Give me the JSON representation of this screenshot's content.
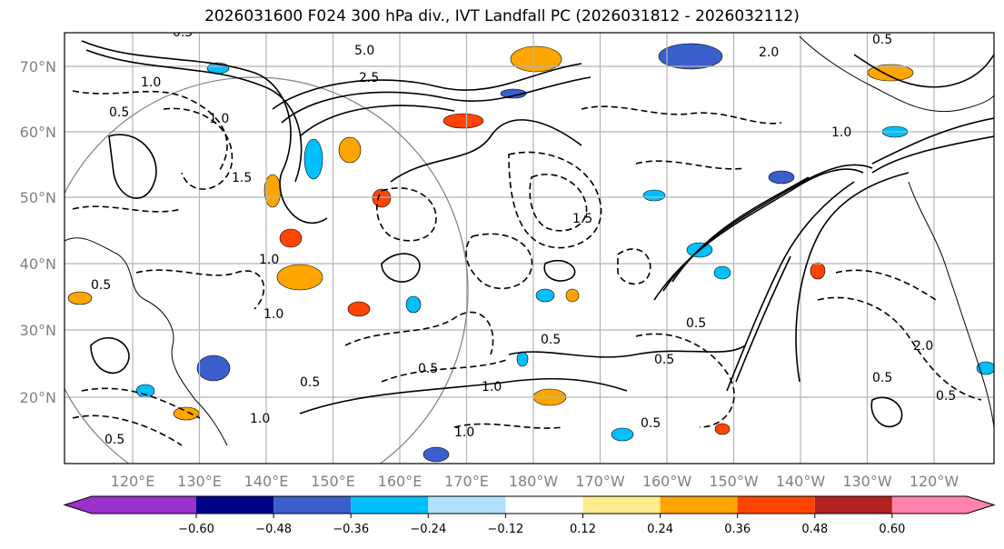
{
  "title": "2026031600 F024 300 hPa div., IVT Landfall PC (2026031812 - 2026032112)",
  "lat_labels": [
    "70°N",
    "60°N",
    "50°N",
    "40°N",
    "30°N",
    "20°N"
  ],
  "lon_labels": [
    "120°E",
    "130°E",
    "140°E",
    "150°E",
    "160°E",
    "170°E",
    "180°W",
    "170°W",
    "160°W",
    "150°W",
    "140°W",
    "130°W",
    "120°W"
  ],
  "colorbar": {
    "colors": [
      "#9932CC",
      "#00008B",
      "#3A5FCD",
      "#00BFFF",
      "#B0E2FF",
      "#FFFFFF",
      "#FFEC8B",
      "#FFA500",
      "#FF4500",
      "#B22222",
      "#FF82AB"
    ],
    "ticks": [
      "−0.60",
      "−0.48",
      "−0.36",
      "−0.24",
      "−0.12",
      "0.12",
      "0.24",
      "0.36",
      "0.48",
      "0.60"
    ]
  },
  "contour_labels": [
    "5.0",
    "2.5",
    "1.0",
    "0.5",
    "1.5",
    "0.5",
    "1.0",
    "0.5",
    "2.0",
    "0.5",
    "1.0",
    "1.5",
    "0.5",
    "1.0",
    "0.5",
    "0.5",
    "1.0",
    "0.5",
    "1.0",
    "0.5",
    "0.5",
    "1.0",
    "0.5",
    "2.0",
    "1.0",
    "0.5",
    "0.5"
  ],
  "colors": {
    "negative_line": "#000000",
    "positive_line": "#000000",
    "grid": "#b4b4b4",
    "circle": "#808080"
  }
}
